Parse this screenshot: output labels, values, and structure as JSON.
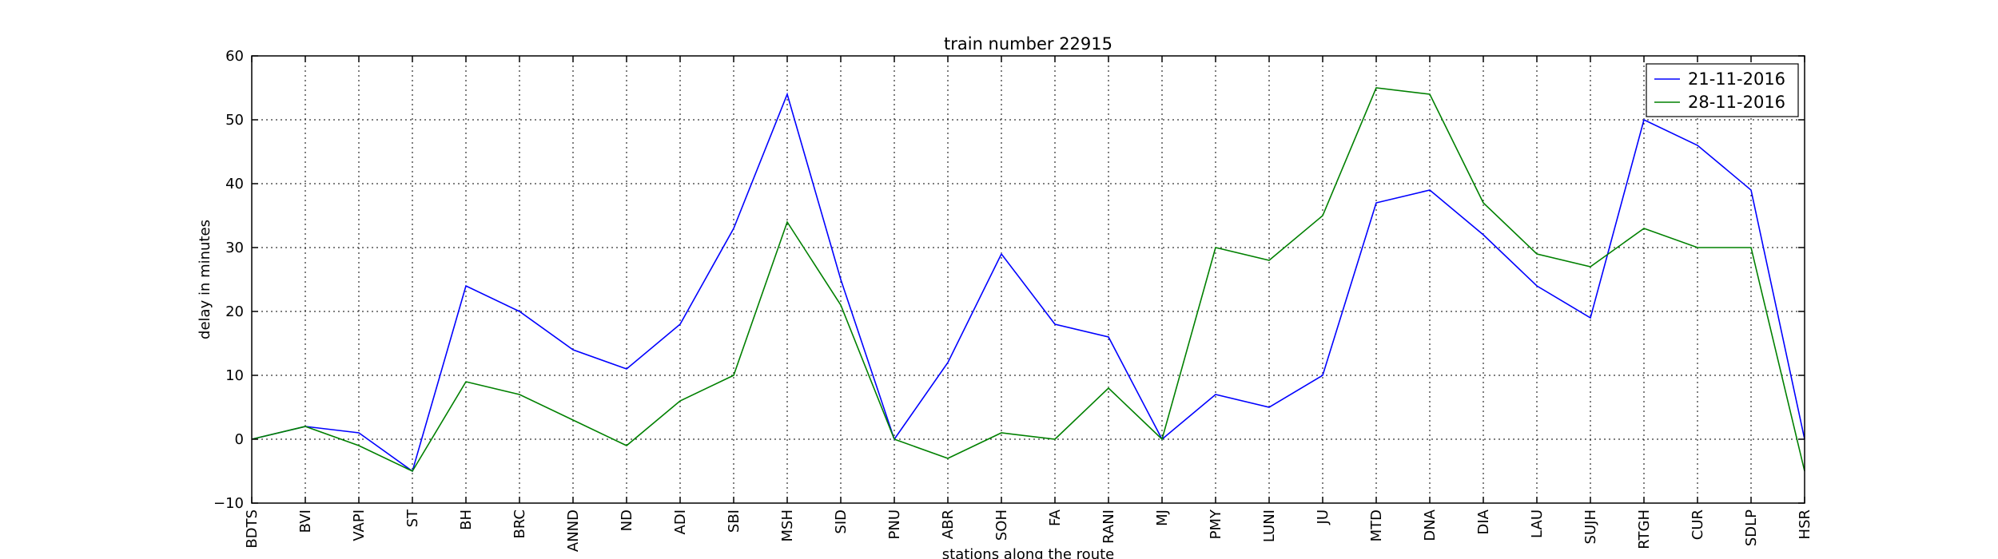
{
  "chart_data": {
    "type": "line",
    "title": "train number 22915",
    "xlabel": "stations along the route",
    "ylabel": "delay in minutes",
    "ylim": [
      -10,
      60
    ],
    "yticks": [
      -10,
      0,
      10,
      20,
      30,
      40,
      50,
      60
    ],
    "grid": true,
    "legend_position": "top-right",
    "categories": [
      "BDTS",
      "BVI",
      "VAPI",
      "ST",
      "BH",
      "BRC",
      "ANND",
      "ND",
      "ADI",
      "SBI",
      "MSH",
      "SID",
      "PNU",
      "ABR",
      "SOH",
      "FA",
      "RANI",
      "MJ",
      "PMY",
      "LUNI",
      "JU",
      "MTD",
      "DNA",
      "DIA",
      "LAU",
      "SUJH",
      "RTGH",
      "CUR",
      "SDLP",
      "HSR"
    ],
    "series": [
      {
        "name": "21-11-2016",
        "color": "#0000ff",
        "values": [
          0,
          2,
          1,
          -5,
          24,
          20,
          14,
          11,
          18,
          33,
          54,
          25,
          0,
          12,
          29,
          18,
          16,
          0,
          7,
          5,
          10,
          37,
          39,
          32,
          24,
          19,
          50,
          46,
          39,
          0
        ]
      },
      {
        "name": "28-11-2016",
        "color": "#008000",
        "values": [
          0,
          2,
          -1,
          -5,
          9,
          7,
          3,
          -1,
          6,
          10,
          34,
          21,
          0,
          -3,
          1,
          0,
          8,
          0,
          30,
          28,
          35,
          55,
          54,
          37,
          29,
          27,
          33,
          30,
          30,
          -5
        ]
      }
    ]
  }
}
